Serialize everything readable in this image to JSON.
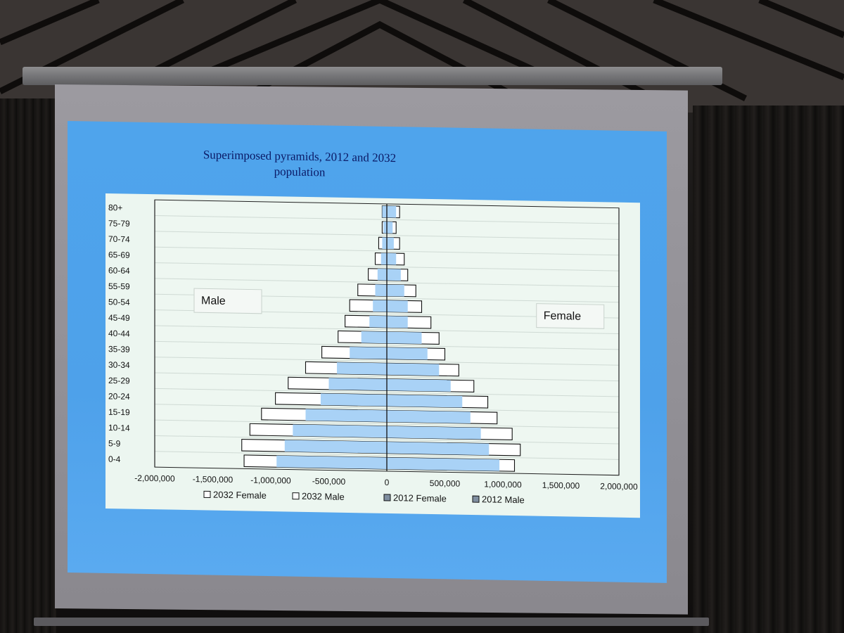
{
  "chart_data": {
    "type": "bar",
    "orientation": "horizontal",
    "title": "Superimposed pyramids, 2012 and 2032 population",
    "categories": [
      "80+",
      "75-79",
      "70-74",
      "65-69",
      "60-64",
      "55-59",
      "50-54",
      "45-49",
      "40-44",
      "35-39",
      "30-34",
      "25-29",
      "20-24",
      "15-19",
      "10-14",
      "5-9",
      "0-4"
    ],
    "xlim": [
      -2000000,
      2000000
    ],
    "xticks": [
      -2000000,
      -1500000,
      -1000000,
      -500000,
      0,
      500000,
      1000000,
      1500000,
      2000000
    ],
    "xtick_labels": [
      "-2,000,000",
      "-1,500,000",
      "-1,000,000",
      "-500,000",
      "0",
      "500,000",
      "1,000,000",
      "1,500,000",
      "2,000,000"
    ],
    "series": [
      {
        "name": "2032 Female",
        "color": "#ffffff",
        "values": [
          110000,
          80000,
          110000,
          150000,
          180000,
          250000,
          300000,
          380000,
          450000,
          500000,
          620000,
          750000,
          870000,
          950000,
          1080000,
          1150000,
          1100000
        ]
      },
      {
        "name": "2032 Male",
        "color": "#ffffff",
        "values": [
          -40000,
          -40000,
          -70000,
          -100000,
          -160000,
          -250000,
          -320000,
          -360000,
          -420000,
          -560000,
          -700000,
          -850000,
          -960000,
          -1080000,
          -1180000,
          -1250000,
          -1230000
        ]
      },
      {
        "name": "2012 Female",
        "color": "#a9d2f6",
        "values": [
          80000,
          50000,
          60000,
          80000,
          120000,
          150000,
          180000,
          180000,
          300000,
          350000,
          450000,
          550000,
          650000,
          720000,
          810000,
          880000,
          970000
        ]
      },
      {
        "name": "2012 Male",
        "color": "#a9d2f6",
        "values": [
          -40000,
          -30000,
          -40000,
          -50000,
          -80000,
          -100000,
          -120000,
          -150000,
          -220000,
          -320000,
          -430000,
          -500000,
          -570000,
          -700000,
          -810000,
          -880000,
          -950000
        ]
      }
    ],
    "annotations": [
      "Male",
      "Female"
    ],
    "legend_position": "bottom",
    "grid": true
  }
}
